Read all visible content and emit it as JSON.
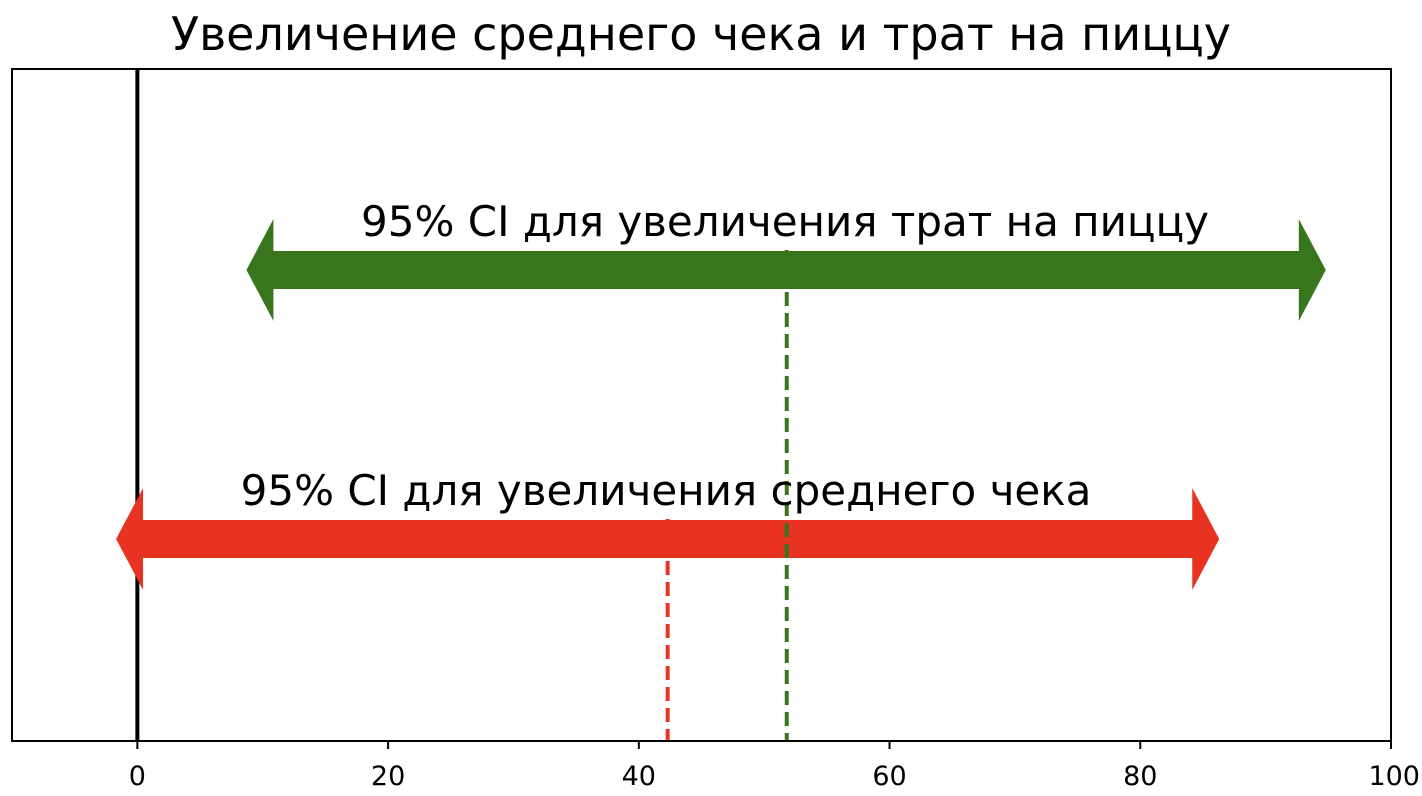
{
  "chart_data": {
    "type": "interval",
    "title": "Увеличение среднего чека и трат на пиццу",
    "xlabel": "",
    "ylabel": "",
    "xlim": [
      -10,
      100
    ],
    "xticks": [
      0,
      20,
      40,
      60,
      80,
      100
    ],
    "tick_labels": [
      "0",
      "20",
      "40",
      "60",
      "80",
      "100"
    ],
    "grid": false,
    "zero_line": 0,
    "intervals": [
      {
        "key": "pizza",
        "label": "95% CI для увеличения трат на пиццу",
        "low": 8.7,
        "high": 94.8,
        "mean": 51.8,
        "level": "upper",
        "color": "#38761d"
      },
      {
        "key": "check",
        "label": "95% CI для увеличения среднего чека",
        "low": -1.7,
        "high": 86.3,
        "mean": 42.3,
        "level": "lower",
        "color": "#e83323"
      }
    ],
    "colors": {
      "axis": "#000000",
      "background": "#ffffff"
    }
  }
}
